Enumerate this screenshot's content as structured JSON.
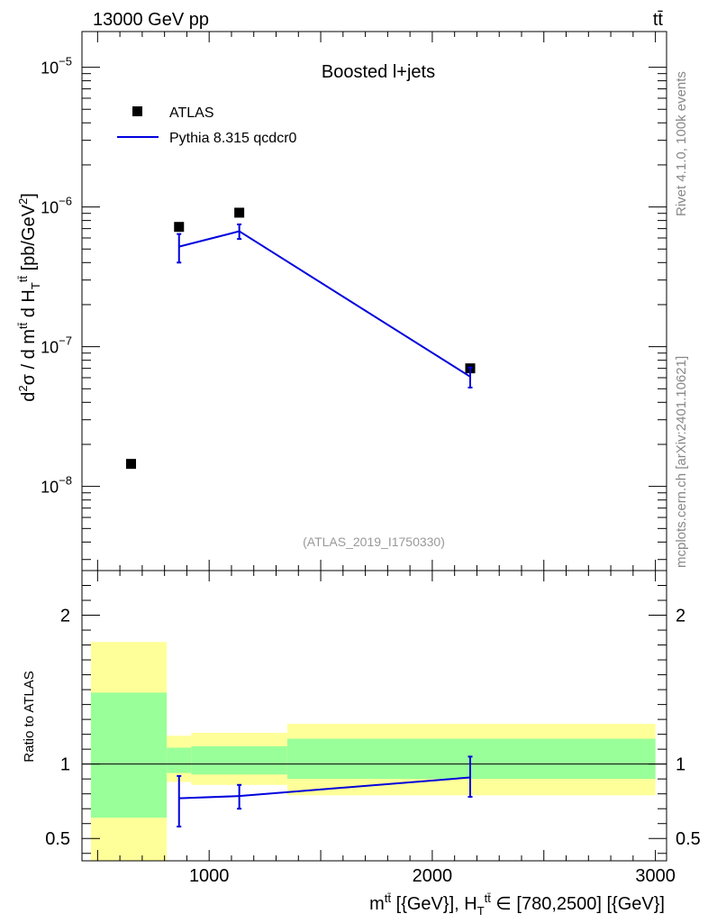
{
  "header": {
    "left": "13000 GeV pp",
    "right": "tt̄"
  },
  "side_labels": {
    "rivet": "Rivet 4.1.0,  100k events",
    "mcplots": "mcplots.cern.ch [arXiv:2401.10621]"
  },
  "chart_data": {
    "type": "scatter",
    "title": "Boosted l+jets",
    "analysis_id": "(ATLAS_2019_I1750330)",
    "main": {
      "ylabel": "d²σ / d m^tt̄ d H_T^tt̄ [pb/GeV²]",
      "ylim": [
        2.5e-09,
        1.8e-05
      ],
      "yscale": "log",
      "ytick_labels": [
        {
          "value": 1e-08,
          "mant": "10",
          "exp": "−8"
        },
        {
          "value": 1e-07,
          "mant": "10",
          "exp": "−7"
        },
        {
          "value": 1e-06,
          "mant": "10",
          "exp": "−6"
        },
        {
          "value": 1e-05,
          "mant": "10",
          "exp": "−5"
        }
      ],
      "series": [
        {
          "name": "ATLAS",
          "style": "markers",
          "color": "#000000",
          "points": [
            {
              "x": 650,
              "y": 1.45e-08
            },
            {
              "x": 865,
              "y": 7.2e-07
            },
            {
              "x": 1135,
              "y": 9.1e-07
            },
            {
              "x": 2170,
              "y": 7e-08
            }
          ]
        },
        {
          "name": "Pythia 8.315 qcdcr0",
          "style": "line",
          "color": "#0000dd",
          "points": [
            {
              "x": 865,
              "y": 5.2e-07,
              "err_low": 4e-07,
              "err_high": 6.4e-07
            },
            {
              "x": 1135,
              "y": 6.7e-07,
              "err_low": 5.9e-07,
              "err_high": 7.5e-07
            },
            {
              "x": 2170,
              "y": 6.1e-08,
              "err_low": 5.1e-08,
              "err_high": 7.1e-08
            }
          ]
        }
      ]
    },
    "ratio": {
      "ylabel": "Ratio to ATLAS",
      "ylim": [
        0.35,
        2.3
      ],
      "ytick_labels": [
        {
          "value": 0.5,
          "label": "0.5"
        },
        {
          "value": 1,
          "label": "1"
        },
        {
          "value": 2,
          "label": "2"
        }
      ],
      "bands": [
        {
          "x0": 470,
          "x1": 810,
          "yellow": [
            0.35,
            1.82
          ],
          "green": [
            0.64,
            1.48
          ]
        },
        {
          "x0": 810,
          "x1": 920,
          "yellow": [
            0.88,
            1.19
          ],
          "green": [
            0.94,
            1.11
          ]
        },
        {
          "x0": 920,
          "x1": 1350,
          "yellow": [
            0.86,
            1.21
          ],
          "green": [
            0.93,
            1.12
          ]
        },
        {
          "x0": 1350,
          "x1": 3000,
          "yellow": [
            0.79,
            1.27
          ],
          "green": [
            0.9,
            1.17
          ]
        }
      ],
      "series": [
        {
          "name": "Pythia 8.315 qcdcr0",
          "color": "#0000dd",
          "points": [
            {
              "x": 865,
              "y": 0.77,
              "err_low": 0.58,
              "err_high": 0.92
            },
            {
              "x": 1135,
              "y": 0.785,
              "err_low": 0.7,
              "err_high": 0.86
            },
            {
              "x": 2170,
              "y": 0.91,
              "err_low": 0.78,
              "err_high": 1.05
            }
          ]
        }
      ]
    },
    "xaxis": {
      "xlim": [
        430,
        3050
      ],
      "tick_labels": [
        "1000",
        "2000",
        "3000"
      ],
      "tick_values": [
        1000,
        2000,
        3000
      ],
      "xlabel": "m^tt̄ [{GeV}], H_T^tt̄ ∈ [780,2500] [{GeV}]"
    },
    "legend": {
      "position": "top-left",
      "entries": [
        {
          "label": "ATLAS",
          "style": "marker"
        },
        {
          "label": "Pythia 8.315 qcdcr0",
          "style": "line"
        }
      ]
    }
  }
}
